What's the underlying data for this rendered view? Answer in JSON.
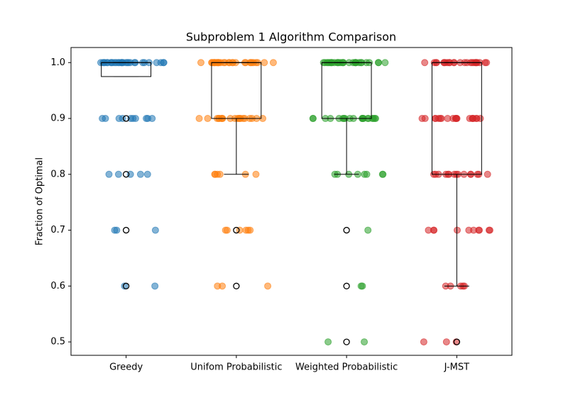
{
  "chart_data": {
    "type": "box",
    "title": "Subproblem 1 Algorithm Comparison",
    "y_label": "Fraction of Optimal",
    "categories": [
      "Greedy",
      "Unifom Probabilistic",
      "Weighted Probabilistic",
      "J-MST"
    ],
    "ylim": [
      0.476,
      1.027
    ],
    "yticks": [
      0.5,
      0.6,
      0.7,
      0.8,
      0.9,
      {
        "value": 1,
        "label": "1.0"
      }
    ],
    "boxes": [
      {
        "q1": 0.975,
        "median": 1,
        "q3": 1,
        "whislo": 0.975,
        "whishi": 1,
        "fliers": [
          0.9,
          0.8,
          0.7,
          0.6
        ]
      },
      {
        "q1": 0.9,
        "median": 1,
        "q3": 1,
        "whislo": 0.8,
        "whishi": 1,
        "fliers": [
          0.7,
          0.6
        ]
      },
      {
        "q1": 0.9,
        "median": 1,
        "q3": 1,
        "whislo": 0.8,
        "whishi": 1,
        "fliers": [
          0.7,
          0.6,
          0.5
        ]
      },
      {
        "q1": 0.8,
        "median": 1,
        "q3": 1,
        "whislo": 0.6,
        "whishi": 1,
        "fliers": [
          0.5
        ]
      }
    ],
    "points": [
      {
        "color": "#1f77b4",
        "values": [
          1,
          1,
          1,
          1,
          1,
          1,
          1,
          1,
          1,
          1,
          1,
          1,
          1,
          1,
          1,
          1,
          1,
          1,
          1,
          1,
          1,
          1,
          1,
          1,
          1,
          1,
          1,
          1,
          1,
          1,
          0.9,
          0.9,
          0.9,
          0.9,
          0.9,
          0.9,
          0.9,
          0.9,
          0.9,
          0.9,
          0.8,
          0.8,
          0.8,
          0.8,
          0.8,
          0.7,
          0.7,
          0.7,
          0.6,
          0.6
        ]
      },
      {
        "color": "#ff7f0e",
        "values": [
          1,
          1,
          1,
          1,
          1,
          1,
          1,
          1,
          1,
          1,
          1,
          1,
          1,
          1,
          1,
          1,
          1,
          1,
          1,
          1,
          1,
          1,
          1,
          1,
          1,
          1,
          1,
          1,
          1,
          1,
          0.9,
          0.9,
          0.9,
          0.9,
          0.9,
          0.9,
          0.9,
          0.9,
          0.9,
          0.9,
          0.9,
          0.9,
          0.9,
          0.9,
          0.9,
          0.9,
          0.9,
          0.9,
          0.9,
          0.9,
          0.8,
          0.8,
          0.8,
          0.8,
          0.8,
          0.8,
          0.7,
          0.7,
          0.7,
          0.7,
          0.7,
          0.7,
          0.6,
          0.6,
          0.6
        ]
      },
      {
        "color": "#2ca02c",
        "values": [
          1,
          1,
          1,
          1,
          1,
          1,
          1,
          1,
          1,
          1,
          1,
          1,
          1,
          1,
          1,
          1,
          1,
          1,
          1,
          1,
          1,
          1,
          1,
          1,
          1,
          1,
          1,
          1,
          1,
          1,
          0.9,
          0.9,
          0.9,
          0.9,
          0.9,
          0.9,
          0.9,
          0.9,
          0.9,
          0.9,
          0.9,
          0.9,
          0.9,
          0.9,
          0.9,
          0.9,
          0.9,
          0.9,
          0.9,
          0.9,
          0.8,
          0.8,
          0.8,
          0.8,
          0.8,
          0.8,
          0.8,
          0.8,
          0.7,
          0.6,
          0.6,
          0.5,
          0.5
        ]
      },
      {
        "color": "#d62728",
        "values": [
          1,
          1,
          1,
          1,
          1,
          1,
          1,
          1,
          1,
          1,
          1,
          1,
          1,
          1,
          1,
          1,
          1,
          1,
          1,
          1,
          1,
          1,
          1,
          1,
          1,
          0.9,
          0.9,
          0.9,
          0.9,
          0.9,
          0.9,
          0.9,
          0.9,
          0.9,
          0.9,
          0.9,
          0.9,
          0.9,
          0.9,
          0.9,
          0.9,
          0.9,
          0.9,
          0.9,
          0.9,
          0.8,
          0.8,
          0.8,
          0.8,
          0.8,
          0.8,
          0.8,
          0.8,
          0.8,
          0.8,
          0.8,
          0.8,
          0.8,
          0.8,
          0.8,
          0.7,
          0.7,
          0.7,
          0.7,
          0.7,
          0.7,
          0.7,
          0.7,
          0.7,
          0.7,
          0.6,
          0.6,
          0.6,
          0.6,
          0.6,
          0.5,
          0.5,
          0.5
        ]
      }
    ]
  }
}
